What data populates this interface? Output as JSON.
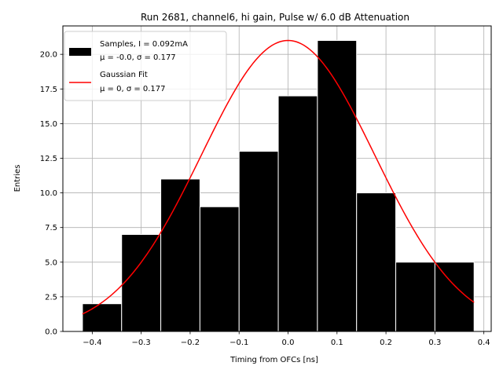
{
  "chart_data": {
    "type": "bar",
    "title": "Run 2681, channel6, hi gain, Pulse w/ 6.0 dB Attenuation",
    "xlabel": "Timing from OFCs [ns]",
    "ylabel": "Entries",
    "xlim": [
      -0.46,
      0.415
    ],
    "ylim": [
      0,
      22.05
    ],
    "grid": true,
    "bin_edges": [
      -0.42,
      -0.34,
      -0.26,
      -0.18,
      -0.1,
      -0.02,
      0.06,
      0.14,
      0.22,
      0.3,
      0.38
    ],
    "counts": [
      2,
      7,
      11,
      9,
      13,
      17,
      21,
      10,
      5,
      5
    ],
    "x_ticks": [
      -0.4,
      -0.3,
      -0.2,
      -0.1,
      0.0,
      0.1,
      0.2,
      0.3,
      0.4
    ],
    "x_tick_labels": [
      "−0.4",
      "−0.3",
      "−0.2",
      "−0.1",
      "0.0",
      "0.1",
      "0.2",
      "0.3",
      "0.4"
    ],
    "y_ticks": [
      0,
      2.5,
      5,
      7.5,
      10,
      12.5,
      15,
      17.5,
      20
    ],
    "y_tick_labels": [
      "0.0",
      "2.5",
      "5.0",
      "7.5",
      "10.0",
      "12.5",
      "15.0",
      "17.5",
      "20.0"
    ],
    "fit": {
      "name": "Gaussian Fit",
      "mu": 0,
      "sigma": 0.177,
      "amplitude": 21,
      "x_range": [
        -0.42,
        0.38
      ],
      "color": "#ff0000"
    },
    "bar_color": "#000000",
    "bar_edge_color": "#ffffff",
    "legend": {
      "placement": "top-left",
      "entries": [
        {
          "line1": "Samples, I = 0.092mA",
          "line2": "μ = -0.0, σ = 0.177"
        },
        {
          "line1": "Gaussian Fit",
          "line2": "μ = 0, σ = 0.177"
        }
      ]
    }
  }
}
